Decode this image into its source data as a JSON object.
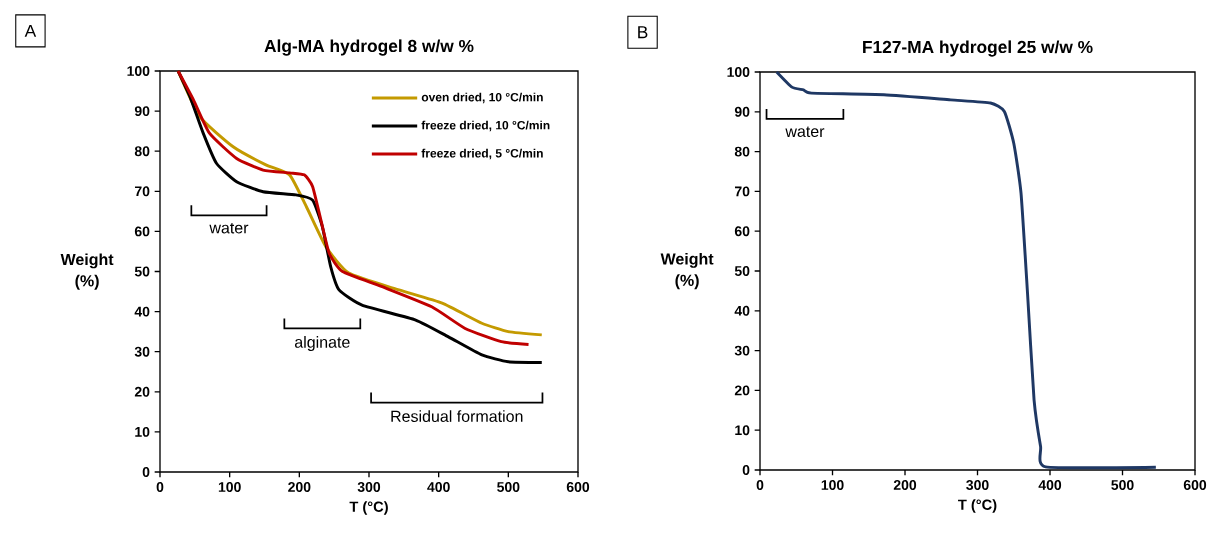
{
  "chart_data": [
    {
      "type": "line",
      "title": "Alg-MA hydrogel 8 w/w %",
      "xlabel": "T (°C)",
      "ylabel": "Weight (%)",
      "xlim": [
        0,
        600
      ],
      "ylim": [
        0,
        100
      ],
      "xticks": [
        0,
        100,
        200,
        300,
        400,
        500,
        600
      ],
      "yticks": [
        0,
        10,
        20,
        30,
        40,
        50,
        60,
        70,
        80,
        90,
        100
      ],
      "legend": "top right",
      "series": [
        {
          "name": "oven dried, 10 °C/min",
          "color": "#c49a00",
          "x": [
            26,
            57,
            105,
            152,
            186,
            210,
            238,
            271,
            343,
            405,
            462,
            500,
            548
          ],
          "values": [
            100,
            88.6,
            81.1,
            76.6,
            74.1,
            66.2,
            56.2,
            49.6,
            45.4,
            42.1,
            37.1,
            35.0,
            34.2
          ]
        },
        {
          "name": "freeze dried, 10 °C/min",
          "color": "#000000",
          "x": [
            26,
            43,
            62,
            81,
            110,
            148,
            195,
            219,
            233,
            245,
            257,
            290,
            367,
            414,
            462,
            500,
            548
          ],
          "values": [
            100,
            93.6,
            84.5,
            77.0,
            72.4,
            69.9,
            69.1,
            67.8,
            61.2,
            51.2,
            45.4,
            41.6,
            37.9,
            33.7,
            29.2,
            27.5,
            27.3
          ]
        },
        {
          "name": "freeze dried, 5 °C/min",
          "color": "#c00000",
          "x": [
            26,
            48,
            71,
            110,
            148,
            186,
            207,
            219,
            231,
            243,
            262,
            319,
            390,
            438,
            490,
            529
          ],
          "values": [
            100,
            92.8,
            84.5,
            78.2,
            75.3,
            74.6,
            74.1,
            71.2,
            62.8,
            54.5,
            50.0,
            46.2,
            41.2,
            35.8,
            32.5,
            31.8
          ]
        }
      ],
      "annotations": [
        "A",
        "water",
        "alginate",
        "Residual formation"
      ]
    },
    {
      "type": "line",
      "title": "F127-MA hydrogel 25 w/w %",
      "xlabel": "T (°C)",
      "ylabel": "Weight (%)",
      "xlim": [
        0,
        600
      ],
      "ylim": [
        0,
        100
      ],
      "xticks": [
        0,
        100,
        200,
        300,
        400,
        500,
        600
      ],
      "yticks": [
        0,
        10,
        20,
        30,
        40,
        50,
        60,
        70,
        80,
        90,
        100
      ],
      "series": [
        {
          "color": "#1f3864",
          "x": [
            23,
            44,
            60,
            71,
            171,
            263,
            318,
            337,
            350,
            360,
            369,
            378,
            387,
            394,
            546
          ],
          "values": [
            100,
            96.2,
            95.5,
            94.7,
            94.3,
            93.0,
            92.2,
            90.1,
            82.1,
            69.6,
            44.4,
            17.6,
            5.9,
            0.8,
            0.7
          ]
        }
      ],
      "annotations": [
        "B",
        "water"
      ]
    }
  ]
}
